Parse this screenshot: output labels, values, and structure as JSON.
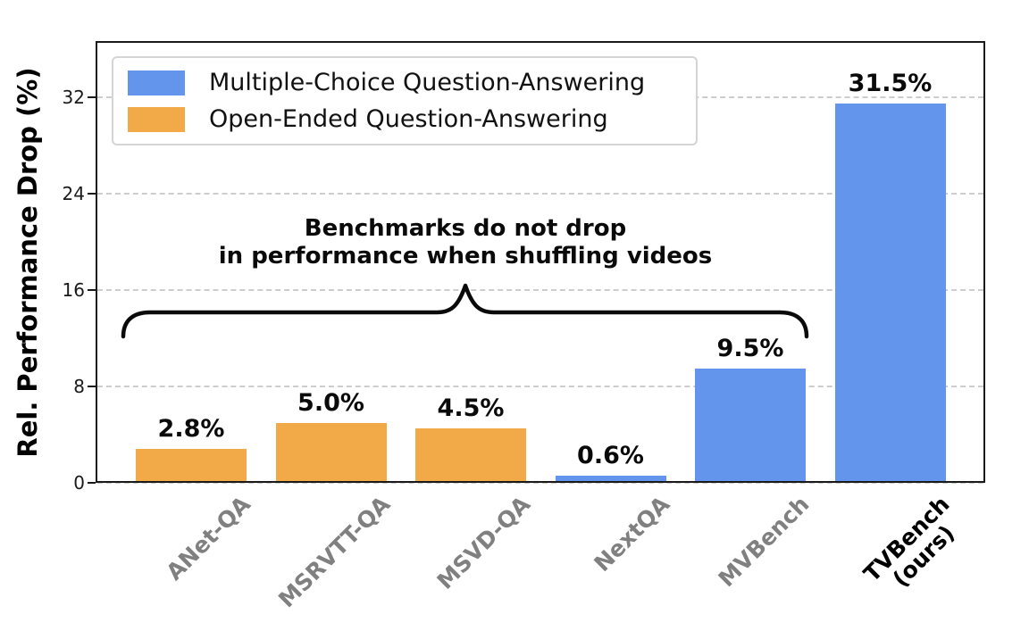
{
  "figure": {
    "ylabel": "Rel. Performance Drop (%)",
    "annotation_line1": "Benchmarks do not drop",
    "annotation_line2": "in performance when shuffling videos"
  },
  "legend": {
    "items": [
      {
        "label": "Multiple-Choice Question-Answering",
        "key": "mc",
        "color": "#6495ED"
      },
      {
        "label": "Open-Ended Question-Answering",
        "key": "oe",
        "color": "#F2A948"
      }
    ]
  },
  "chart_data": {
    "type": "bar",
    "title": "",
    "xlabel": "",
    "ylabel": "Rel. Performance Drop (%)",
    "categories": [
      "ANet-QA",
      "MSRVTT-QA",
      "MSVD-QA",
      "NextQA",
      "MVBench",
      "TVBench (ours)"
    ],
    "category_lines": [
      [
        "ANet-QA"
      ],
      [
        "MSRVTT-QA"
      ],
      [
        "MSVD-QA"
      ],
      [
        "NextQA"
      ],
      [
        "MVBench"
      ],
      [
        "TVBench",
        "(ours)"
      ]
    ],
    "values": [
      2.8,
      5.0,
      4.5,
      0.6,
      9.5,
      31.5
    ],
    "bar_labels": [
      "2.8%",
      "5.0%",
      "4.5%",
      "0.6%",
      "9.5%",
      "31.5%"
    ],
    "bar_series": [
      "oe",
      "oe",
      "oe",
      "mc",
      "mc",
      "mc"
    ],
    "series": [
      {
        "name": "Multiple-Choice Question-Answering",
        "key": "mc",
        "color": "#6495ED"
      },
      {
        "name": "Open-Ended Question-Answering",
        "key": "oe",
        "color": "#F2A948"
      }
    ],
    "yticks": [
      0,
      8,
      16,
      24,
      32
    ],
    "ylim": [
      0,
      36.7
    ],
    "grid": "horizontal-dashed",
    "legend_position": "upper-left",
    "annotation": "Benchmarks do not drop in performance when shuffling videos",
    "annotation_span_categories": [
      "ANet-QA",
      "MVBench"
    ],
    "highlight_category": "TVBench (ours)",
    "colors": {
      "grid": "#cdcdcd",
      "tick_label_default": "#808080",
      "tick_label_highlight": "#000000"
    }
  }
}
